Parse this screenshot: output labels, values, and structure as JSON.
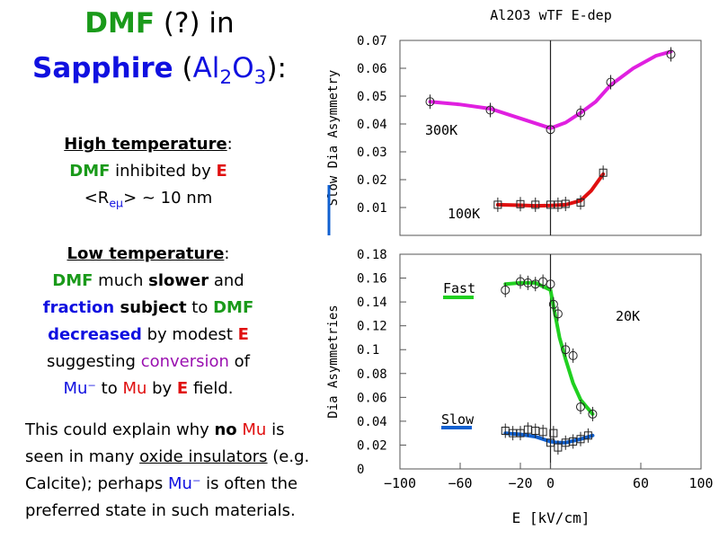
{
  "left": {
    "title_line1": {
      "dmf": "DMF",
      "q": " (?) in"
    },
    "title_line2": {
      "sapphire": "Sapphire",
      "open": " (",
      "al": "Al",
      "al_sub": "2",
      "o": "O",
      "o_sub": "3",
      "close": "):"
    },
    "high": {
      "title": "High temperature",
      "colon": ":",
      "dmf": "DMF",
      "inhibited": " inhibited by ",
      "e": "E",
      "re_open": "<R",
      "re_sub": "eμ",
      "re_close": "> ~ 10 nm"
    },
    "low": {
      "title": "Low temperature",
      "colon": ":",
      "dmf1": "DMF",
      "much": " much ",
      "slower": "slower",
      "and": " and",
      "fraction": "fraction",
      "subject": " subject",
      "to": " to ",
      "dmf2": "DMF",
      "decreased": "decreased",
      "by_modest": " by modest ",
      "e1": "E",
      "suggesting": "suggesting ",
      "conversion": "conversion",
      "of": " of",
      "mu_minus": "Mu⁻",
      "to_mu": " to ",
      "mu": "Mu",
      "by": " by ",
      "e2": "E",
      "field": " field."
    },
    "explain": {
      "a": "This could explain why ",
      "no": "no",
      "sp": " ",
      "mu": "Mu",
      "b": " is seen in many ",
      "oxide": "oxide insulators",
      "c": " (e.g. Calcite); perhaps ",
      "mu_minus": "Mu⁻",
      "d": " is often the preferred state in such materials."
    }
  },
  "colors": {
    "magenta": "#e020e0",
    "red": "#e01010",
    "green": "#20d020",
    "blue": "#1060d0",
    "title_green": "#1a9a1a",
    "title_blue": "#1010e0"
  },
  "chart_data": [
    {
      "type": "scatter",
      "title": "Al2O3 wTF E-dep",
      "ylabel": "Slow Dia Asymmetry",
      "xlabel": "",
      "xlim": [
        -100,
        100
      ],
      "ylim": [
        0,
        0.07
      ],
      "yticks": [
        "0.07",
        "0.06",
        "0.05",
        "0.04",
        "0.03",
        "0.02",
        "0.01"
      ],
      "yticks_values": [
        0.07,
        0.06,
        0.05,
        0.04,
        0.03,
        0.02,
        0.01
      ],
      "series": [
        {
          "name": "300K",
          "color": "#e020e0",
          "x": [
            -80,
            -40,
            0,
            20,
            40,
            80
          ],
          "y": [
            0.048,
            0.045,
            0.038,
            0.044,
            0.055,
            0.065
          ],
          "fit_x": [
            -80,
            -60,
            -40,
            -20,
            0,
            10,
            20,
            30,
            40,
            55,
            70,
            80
          ],
          "fit_y": [
            0.048,
            0.047,
            0.0455,
            0.042,
            0.0385,
            0.0405,
            0.044,
            0.048,
            0.054,
            0.06,
            0.0645,
            0.066
          ]
        },
        {
          "name": "100K",
          "color": "#e01010",
          "x": [
            -35,
            -20,
            -10,
            0,
            5,
            10,
            20,
            35
          ],
          "y": [
            0.011,
            0.0112,
            0.011,
            0.011,
            0.011,
            0.0113,
            0.0118,
            0.0225
          ],
          "fit_x": [
            -35,
            -20,
            -10,
            0,
            10,
            20,
            27,
            35
          ],
          "fit_y": [
            0.011,
            0.0108,
            0.0106,
            0.0107,
            0.011,
            0.0125,
            0.016,
            0.022
          ]
        }
      ]
    },
    {
      "type": "scatter",
      "title": "",
      "ylabel": "Dia Asymmetries",
      "xlabel": "E [kV/cm]",
      "xlim": [
        -100,
        100
      ],
      "ylim": [
        0,
        0.18
      ],
      "yticks": [
        "0.18",
        "0.16",
        "0.14",
        "0.12",
        "0.1",
        "0.08",
        "0.06",
        "0.04",
        "0.02",
        "0"
      ],
      "yticks_values": [
        0.18,
        0.16,
        0.14,
        0.12,
        0.1,
        0.08,
        0.06,
        0.04,
        0.02,
        0
      ],
      "xticks": [
        "−100",
        "−60",
        "−20",
        "0",
        "60",
        "100"
      ],
      "xticks_values": [
        -100,
        -60,
        -20,
        0,
        60,
        100
      ],
      "annotation": "20K",
      "series": [
        {
          "name": "Fast",
          "color": "#20d020",
          "x": [
            -30,
            -20,
            -15,
            -10,
            -5,
            0,
            2,
            5,
            10,
            15,
            20,
            28
          ],
          "y": [
            0.15,
            0.157,
            0.156,
            0.155,
            0.157,
            0.155,
            0.138,
            0.13,
            0.1,
            0.095,
            0.052,
            0.046
          ],
          "fit_x": [
            -30,
            -20,
            -10,
            0,
            3,
            6,
            10,
            15,
            20,
            28
          ],
          "fit_y": [
            0.155,
            0.156,
            0.156,
            0.15,
            0.13,
            0.11,
            0.092,
            0.072,
            0.058,
            0.046
          ]
        },
        {
          "name": "Slow",
          "color": "#1060d0",
          "x": [
            -30,
            -25,
            -20,
            -15,
            -10,
            -5,
            0,
            2,
            5,
            10,
            15,
            20,
            25
          ],
          "y": [
            0.032,
            0.03,
            0.03,
            0.033,
            0.032,
            0.031,
            0.022,
            0.03,
            0.018,
            0.022,
            0.023,
            0.025,
            0.028
          ],
          "fit_x": [
            -30,
            -20,
            -10,
            0,
            5,
            10,
            20,
            28
          ],
          "fit_y": [
            0.03,
            0.029,
            0.027,
            0.023,
            0.022,
            0.022,
            0.025,
            0.028
          ]
        }
      ]
    }
  ]
}
